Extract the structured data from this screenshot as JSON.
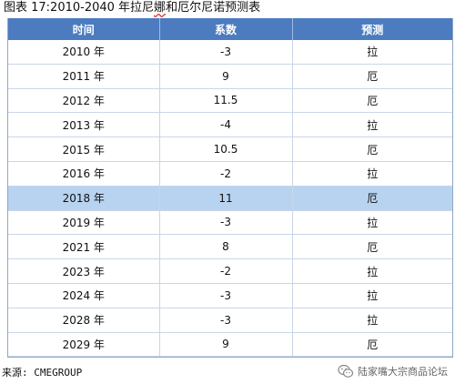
{
  "title": {
    "prefix": "图表 17:2010-2040 年拉尼",
    "underlined": "娜",
    "suffix": "和厄尔尼诺预测表"
  },
  "table": {
    "headers": [
      "时间",
      "系数",
      "预测"
    ],
    "highlight_color": "#b8d3f0",
    "header_color": "#4c7cbf",
    "rows": [
      {
        "time": "2010 年",
        "coef": "-3",
        "forecast": "拉",
        "highlight": false
      },
      {
        "time": "2011 年",
        "coef": "9",
        "forecast": "厄",
        "highlight": false
      },
      {
        "time": "2012 年",
        "coef": "11.5",
        "forecast": "厄",
        "highlight": false
      },
      {
        "time": "2013 年",
        "coef": "-4",
        "forecast": "拉",
        "highlight": false
      },
      {
        "time": "2015 年",
        "coef": "10.5",
        "forecast": "厄",
        "highlight": false
      },
      {
        "time": "2016 年",
        "coef": "-2",
        "forecast": "拉",
        "highlight": false
      },
      {
        "time": "2018 年",
        "coef": "11",
        "forecast": "厄",
        "highlight": true
      },
      {
        "time": "2019 年",
        "coef": "-3",
        "forecast": "拉",
        "highlight": false
      },
      {
        "time": "2021 年",
        "coef": "8",
        "forecast": "厄",
        "highlight": false
      },
      {
        "time": "2023 年",
        "coef": "-2",
        "forecast": "拉",
        "highlight": false
      },
      {
        "time": "2024 年",
        "coef": "-3",
        "forecast": "拉",
        "highlight": false
      },
      {
        "time": "2028 年",
        "coef": "-3",
        "forecast": "拉",
        "highlight": false
      },
      {
        "time": "2029 年",
        "coef": "9",
        "forecast": "厄",
        "highlight": false
      }
    ]
  },
  "source": "来源: CMEGROUP",
  "watermark": {
    "icon": "wechat-icon",
    "text": "陆家嘴大宗商品论坛"
  }
}
